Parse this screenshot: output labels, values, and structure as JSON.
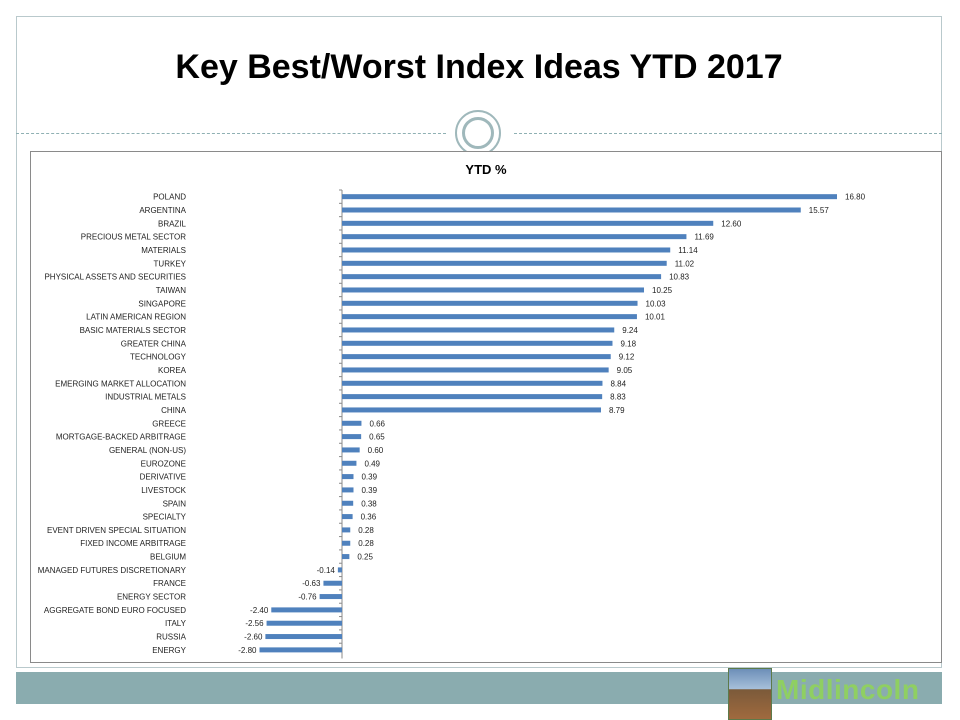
{
  "title": "Key Best/Worst Index Ideas YTD 2017",
  "logo_text": "Midlincoln",
  "colors": {
    "bar": "#4f81bd",
    "frame": "#b9c9cc",
    "footer_band": "#8aacaf",
    "logo_text": "#8fcf62"
  },
  "chart_data": {
    "type": "bar",
    "orientation": "horizontal",
    "title": "YTD %",
    "grid": false,
    "legend": "none",
    "categories": [
      "POLAND",
      "ARGENTINA",
      "BRAZIL",
      "PRECIOUS METAL SECTOR",
      "MATERIALS",
      "TURKEY",
      "PHYSICAL ASSETS AND SECURITIES",
      "TAIWAN",
      "SINGAPORE",
      "LATIN AMERICAN REGION",
      "BASIC MATERIALS SECTOR",
      "GREATER CHINA",
      "TECHNOLOGY",
      "KOREA",
      "EMERGING MARKET ALLOCATION",
      "INDUSTRIAL METALS",
      "CHINA",
      "GREECE",
      "MORTGAGE-BACKED ARBITRAGE",
      "GENERAL (NON-US)",
      "EUROZONE",
      "DERIVATIVE",
      "LIVESTOCK",
      "SPAIN",
      "SPECIALTY",
      "EVENT DRIVEN SPECIAL SITUATION",
      "FIXED INCOME ARBITRAGE",
      "BELGIUM",
      "MANAGED FUTURES DISCRETIONARY",
      "FRANCE",
      "ENERGY SECTOR",
      "AGGREGATE BOND EURO FOCUSED",
      "ITALY",
      "RUSSIA",
      "ENERGY"
    ],
    "values": [
      16.8,
      15.57,
      12.6,
      11.69,
      11.14,
      11.02,
      10.83,
      10.25,
      10.03,
      10.01,
      9.24,
      9.18,
      9.12,
      9.05,
      8.84,
      8.83,
      8.79,
      0.66,
      0.65,
      0.6,
      0.49,
      0.39,
      0.39,
      0.38,
      0.36,
      0.28,
      0.28,
      0.25,
      -0.14,
      -0.63,
      -0.76,
      -2.4,
      -2.56,
      -2.6,
      -2.8
    ],
    "value_labels": [
      "16.80",
      "15.57",
      "12.60",
      "11.69",
      "11.14",
      "11.02",
      "10.83",
      "10.25",
      "10.03",
      "10.01",
      "9.24",
      "9.18",
      "9.12",
      "9.05",
      "8.84",
      "8.83",
      "8.79",
      "0.66",
      "0.65",
      "0.60",
      "0.49",
      "0.39",
      "0.39",
      "0.38",
      "0.36",
      "0.28",
      "0.28",
      "0.25",
      "-0.14",
      "-0.63",
      "-0.76",
      "-2.40",
      "-2.56",
      "-2.60",
      "-2.80"
    ]
  }
}
